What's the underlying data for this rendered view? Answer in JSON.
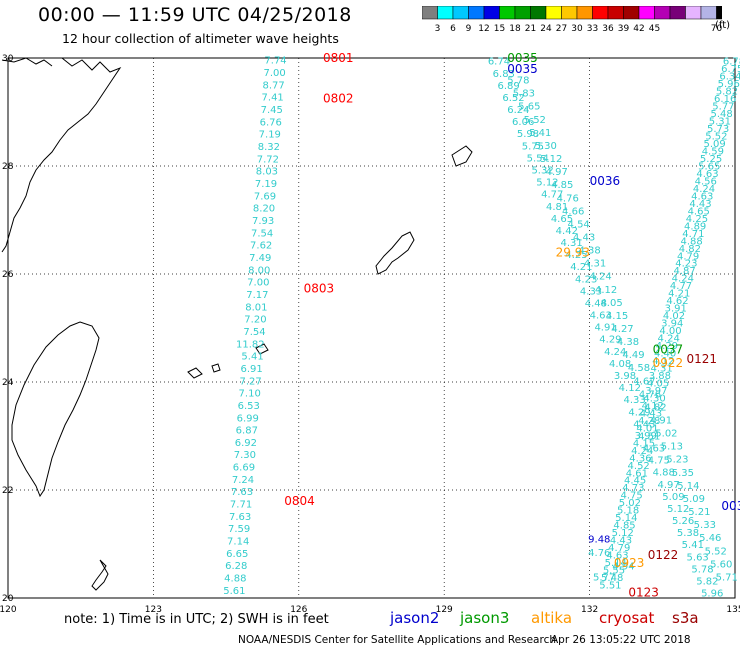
{
  "title": "00:00 — 11:59 UTC 04/25/2018",
  "subtitle": "12 hour collection of altimeter wave heights",
  "colorbar": {
    "colors": [
      "#7f7f7f",
      "#00ffff",
      "#00c8ff",
      "#0078ff",
      "#0000e6",
      "#00c800",
      "#00a000",
      "#007800",
      "#ffff00",
      "#ffc800",
      "#ff9600",
      "#ff0000",
      "#c80000",
      "#a00000",
      "#ff00ff",
      "#b400b4",
      "#780078",
      "#e6b4ff",
      "#b4b4e6",
      "#000000"
    ],
    "labels": [
      "3",
      "6",
      "9",
      "12",
      "15",
      "18",
      "21",
      "24",
      "27",
      "30",
      "33",
      "36",
      "39",
      "42",
      "45",
      "70"
    ],
    "unit": "(ft)"
  },
  "axes": {
    "lon_ticks": [
      120,
      123,
      126,
      129,
      132,
      135
    ],
    "lat_ticks": [
      20,
      22,
      24,
      26,
      28,
      30
    ]
  },
  "colors": {
    "jason2": "#0000cc",
    "jason3": "#009900",
    "altika": "#ff9900",
    "cryosat": "#cc0000",
    "s3a": "#990000",
    "swh": "#33cccc",
    "timelabel": "#ff0000"
  },
  "tracks": {
    "t0801": {
      "label": "0801",
      "lon": 126.5,
      "lat": 30.0
    },
    "t0802": {
      "label": "0802",
      "lon": 126.5,
      "lat": 29.25
    },
    "t0803": {
      "label": "0803",
      "lon": 126.1,
      "lat": 25.73
    },
    "t0804": {
      "label": "0804",
      "lon": 125.7,
      "lat": 21.8
    },
    "t0035a": {
      "label": "0035",
      "lon": 130.3,
      "lat": 30.0
    },
    "t0035b": {
      "label": "0035",
      "lon": 130.3,
      "lat": 29.8
    },
    "t0036": {
      "label": "0036",
      "lon": 132.0,
      "lat": 27.72
    },
    "t0037": {
      "label": "0037",
      "lon": 133.3,
      "lat": 24.6
    },
    "t0121": {
      "label": "0121",
      "lon": 134.0,
      "lat": 24.43
    },
    "t0922": {
      "label": "0922",
      "lon": 133.3,
      "lat": 24.35
    },
    "t0122": {
      "label": "0122",
      "lon": 133.2,
      "lat": 20.8
    },
    "t0923": {
      "label": "0923",
      "lon": 132.5,
      "lat": 20.65
    },
    "t0123": {
      "label": "0123",
      "lon": 132.8,
      "lat": 20.1
    },
    "t003x": {
      "label": "003",
      "lon": 134.72,
      "lat": 21.7
    },
    "t2993": {
      "label": "29.93",
      "lon": 131.3,
      "lat": 26.4
    }
  },
  "track1_values": [
    "7.74",
    "7.00",
    "8.77",
    "7.41",
    "7.45",
    "6.76",
    "7.19",
    "8.32",
    "7.72",
    "8.03",
    "7.19",
    "7.69",
    "8.20",
    "7.93",
    "7.54",
    "7.62",
    "7.49",
    "8.00",
    "7.00",
    "7.17",
    "8.01",
    "7.20",
    "7.54",
    "11.82",
    "5.41",
    "6.91",
    "7.27",
    "7.10",
    "6.53",
    "6.99",
    "6.87",
    "6.92",
    "7.30",
    "6.69",
    "7.24",
    "7.63",
    "7.71",
    "7.63",
    "7.59",
    "7.14",
    "6.65",
    "6.28",
    "4.88",
    "5.61"
  ],
  "track_a_values": [
    "6.74",
    "6.83",
    "6.89",
    "6.52",
    "6.24",
    "6.06",
    "5.98",
    "5.75",
    "5.54",
    "5.32",
    "5.12",
    "4.77",
    "4.81",
    "4.65",
    "4.42",
    "4.31",
    "4.25",
    "4.21",
    "4.23",
    "4.33",
    "4.48",
    "4.63",
    "4.91",
    "4.29",
    "4.24",
    "4.08",
    "3.98",
    "4.12",
    "4.33",
    "4.29",
    "4.43",
    "4.51",
    "4.63",
    "4.75",
    "4.88",
    "4.97",
    "5.09",
    "5.12",
    "5.26",
    "5.38",
    "5.41",
    "5.63",
    "5.78",
    "5.82",
    "5.96"
  ],
  "track_b_values": [
    "6.78",
    "6.75",
    "6.34",
    "5.96",
    "5.82",
    "6.16",
    "5.77",
    "5.48",
    "5.31",
    "5.73",
    "5.52",
    "5.09",
    "4.59",
    "5.25",
    "5.65",
    "4.63",
    "4.56",
    "4.24",
    "4.63",
    "4.43",
    "4.65",
    "4.25",
    "4.89",
    "4.71",
    "4.88",
    "4.82",
    "4.79",
    "4.23",
    "4.87",
    "4.24",
    "4.77",
    "4.21",
    "4.62",
    "3.91",
    "4.02",
    "3.94",
    "4.00",
    "4.24",
    "4.29",
    "4.40",
    "4.12",
    "4.31",
    "3.88",
    "4.05",
    "3.97",
    "4.30",
    "4.12",
    "4.43",
    "4.28",
    "4.01",
    "3.99",
    "4.15",
    "4.24",
    "4.36",
    "4.52",
    "4.61",
    "4.45",
    "4.73",
    "4.75",
    "5.02",
    "5.18",
    "5.14",
    "4.85",
    "5.12",
    "4.43",
    "4.79",
    "4.63",
    "5.14",
    "5.55",
    "5.48",
    "5.51"
  ],
  "track_c_values": [
    "5.78",
    "5.83",
    "5.65",
    "5.52",
    "5.41",
    "5.30",
    "5.12",
    "4.97",
    "4.85",
    "4.76",
    "4.66",
    "4.54",
    "4.43",
    "4.38",
    "4.31",
    "4.24",
    "4.12",
    "4.05",
    "4.15",
    "4.27",
    "4.38",
    "4.49",
    "4.58",
    "4.67",
    "4.76",
    "4.82",
    "4.91",
    "5.02",
    "5.13",
    "5.23",
    "5.35",
    "5.14",
    "5.09",
    "5.21",
    "5.33",
    "5.46",
    "5.52",
    "5.60",
    "5.71"
  ],
  "special_values": [
    {
      "v": "9.48",
      "lon": 132.2,
      "lat": 21.1,
      "c": "#0000cc"
    },
    {
      "v": "4.76",
      "lon": 132.2,
      "lat": 20.85,
      "c": "#33cccc"
    },
    {
      "v": "4.94",
      "lon": 132.7,
      "lat": 20.6,
      "c": "#33cccc"
    },
    {
      "v": "5.77",
      "lon": 132.3,
      "lat": 20.4,
      "c": "#33cccc"
    }
  ],
  "note": "note: 1) Time is in UTC; 2) SWH is in feet",
  "legend": [
    {
      "label": "jason2",
      "color": "#0000cc"
    },
    {
      "label": "jason3",
      "color": "#009900"
    },
    {
      "label": "altika",
      "color": "#ff9900"
    },
    {
      "label": "cryosat",
      "color": "#cc0000"
    },
    {
      "label": "s3a",
      "color": "#990000"
    }
  ],
  "credit": "NOAA/NESDIS Center for Satellite Applications and Research",
  "stamp": "Apr 26 13:05:22 UTC 2018"
}
